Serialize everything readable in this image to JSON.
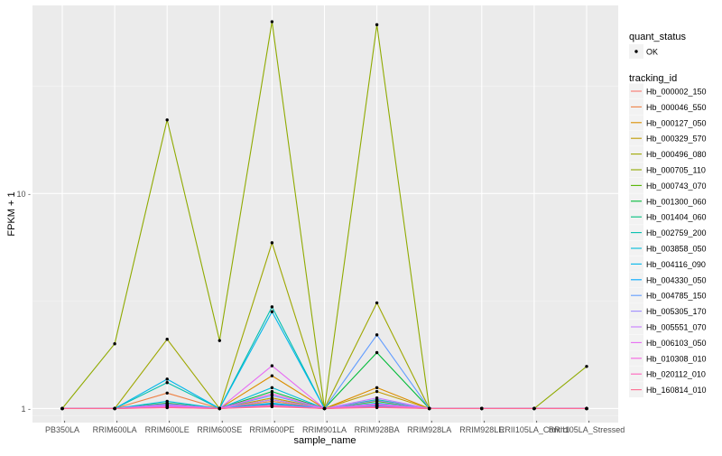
{
  "chart_data": {
    "type": "line",
    "xlabel": "sample_name",
    "ylabel": "FPKM + 1",
    "y_scale": "log10",
    "ylim": [
      0.86,
      75
    ],
    "y_ticks": [
      1,
      10
    ],
    "y_tick_labels": [
      "1 -",
      "10 -"
    ],
    "x_tick_marks": [
      "-",
      "-",
      "-",
      "-",
      "-",
      "-",
      "-",
      "-",
      "-",
      "-",
      "-"
    ],
    "categories": [
      "PB350LA",
      "RRIM600LA",
      "RRIM600LE",
      "RRIM600SE",
      "RRIM600PE",
      "RRIM901LA",
      "RRIM928BA",
      "RRIM928LA",
      "RRIM928LE",
      "RRII105LA_Control",
      "RRII105LA_Stressed"
    ],
    "legend_quant": {
      "title": "quant_status",
      "entries": [
        "OK"
      ]
    },
    "legend_tracking": {
      "title": "tracking_id"
    },
    "series": [
      {
        "name": "Hb_000002_150",
        "color": "#F8766D",
        "values": [
          1,
          1,
          1.02,
          1,
          1.03,
          1,
          1.02,
          1,
          1,
          1,
          1
        ]
      },
      {
        "name": "Hb_000046_550",
        "color": "#EE8044",
        "values": [
          1,
          1,
          1.18,
          1,
          1.08,
          1,
          1.05,
          1,
          1,
          1,
          1
        ]
      },
      {
        "name": "Hb_000127_050",
        "color": "#DB8E00",
        "values": [
          1,
          1,
          1.05,
          1,
          1.42,
          1,
          1.25,
          1,
          1,
          1,
          1
        ]
      },
      {
        "name": "Hb_000329_570",
        "color": "#C09B00",
        "values": [
          1,
          1,
          1.03,
          1,
          1.12,
          1,
          1.2,
          1,
          1,
          1,
          1
        ]
      },
      {
        "name": "Hb_000496_080",
        "color": "#9EA700",
        "values": [
          1,
          1,
          2.1,
          1,
          5.9,
          1,
          3.1,
          1,
          1,
          1,
          1
        ]
      },
      {
        "name": "Hb_000705_110",
        "color": "#8FAA00",
        "values": [
          1,
          2,
          22,
          2.07,
          63,
          1,
          61,
          1,
          1,
          1,
          1.57
        ]
      },
      {
        "name": "Hb_000743_070",
        "color": "#53B400",
        "values": [
          1,
          1,
          1.04,
          1,
          1.1,
          1,
          1.08,
          1,
          1,
          1,
          1
        ]
      },
      {
        "name": "Hb_001300_060",
        "color": "#00BA38",
        "values": [
          1,
          1,
          1.06,
          1,
          1.2,
          1,
          1.82,
          1,
          1,
          1,
          1
        ]
      },
      {
        "name": "Hb_001404_060",
        "color": "#00BF7D",
        "values": [
          1,
          1,
          1.02,
          1,
          1.05,
          1,
          1.03,
          1,
          1,
          1,
          1
        ]
      },
      {
        "name": "Hb_002759_200",
        "color": "#00C0AF",
        "values": [
          1,
          1,
          1.32,
          1,
          2.97,
          1,
          1.1,
          1,
          1,
          1,
          1
        ]
      },
      {
        "name": "Hb_003858_050",
        "color": "#00BCD8",
        "values": [
          1,
          1,
          1.08,
          1,
          1.25,
          1,
          1.06,
          1,
          1,
          1,
          1
        ]
      },
      {
        "name": "Hb_004116_090",
        "color": "#00B6EB",
        "values": [
          1,
          1,
          1.37,
          1,
          2.82,
          1,
          1.04,
          1,
          1,
          1,
          1
        ]
      },
      {
        "name": "Hb_004330_050",
        "color": "#00A9FF",
        "values": [
          1,
          1,
          1.03,
          1,
          1.06,
          1,
          1.03,
          1,
          1,
          1,
          1
        ]
      },
      {
        "name": "Hb_004785_150",
        "color": "#619CFF",
        "values": [
          1,
          1,
          1.04,
          1,
          1.15,
          1,
          2.2,
          1,
          1,
          1,
          1
        ]
      },
      {
        "name": "Hb_005305_170",
        "color": "#9F8CFF",
        "values": [
          1,
          1,
          1.02,
          1,
          1.04,
          1,
          1.09,
          1,
          1,
          1,
          1
        ]
      },
      {
        "name": "Hb_005551_070",
        "color": "#C77CFF",
        "values": [
          1,
          1,
          1.05,
          1,
          1.1,
          1,
          1.12,
          1,
          1,
          1,
          1
        ]
      },
      {
        "name": "Hb_006103_050",
        "color": "#E76BF3",
        "values": [
          1,
          1,
          1.03,
          1,
          1.58,
          1,
          1.05,
          1,
          1,
          1,
          1
        ]
      },
      {
        "name": "Hb_010308_010",
        "color": "#F564E3",
        "values": [
          1,
          1,
          1.02,
          1,
          1.17,
          1,
          1.04,
          1,
          1,
          1,
          1
        ]
      },
      {
        "name": "Hb_020112_010",
        "color": "#FF62BC",
        "values": [
          1,
          1,
          1.01,
          1,
          1.03,
          1,
          1.02,
          1,
          1,
          1,
          1
        ]
      },
      {
        "name": "Hb_160814_010",
        "color": "#FF6C91",
        "values": [
          1,
          1,
          1.01,
          1,
          1.02,
          1,
          1.01,
          1,
          1,
          1,
          1
        ]
      }
    ]
  }
}
